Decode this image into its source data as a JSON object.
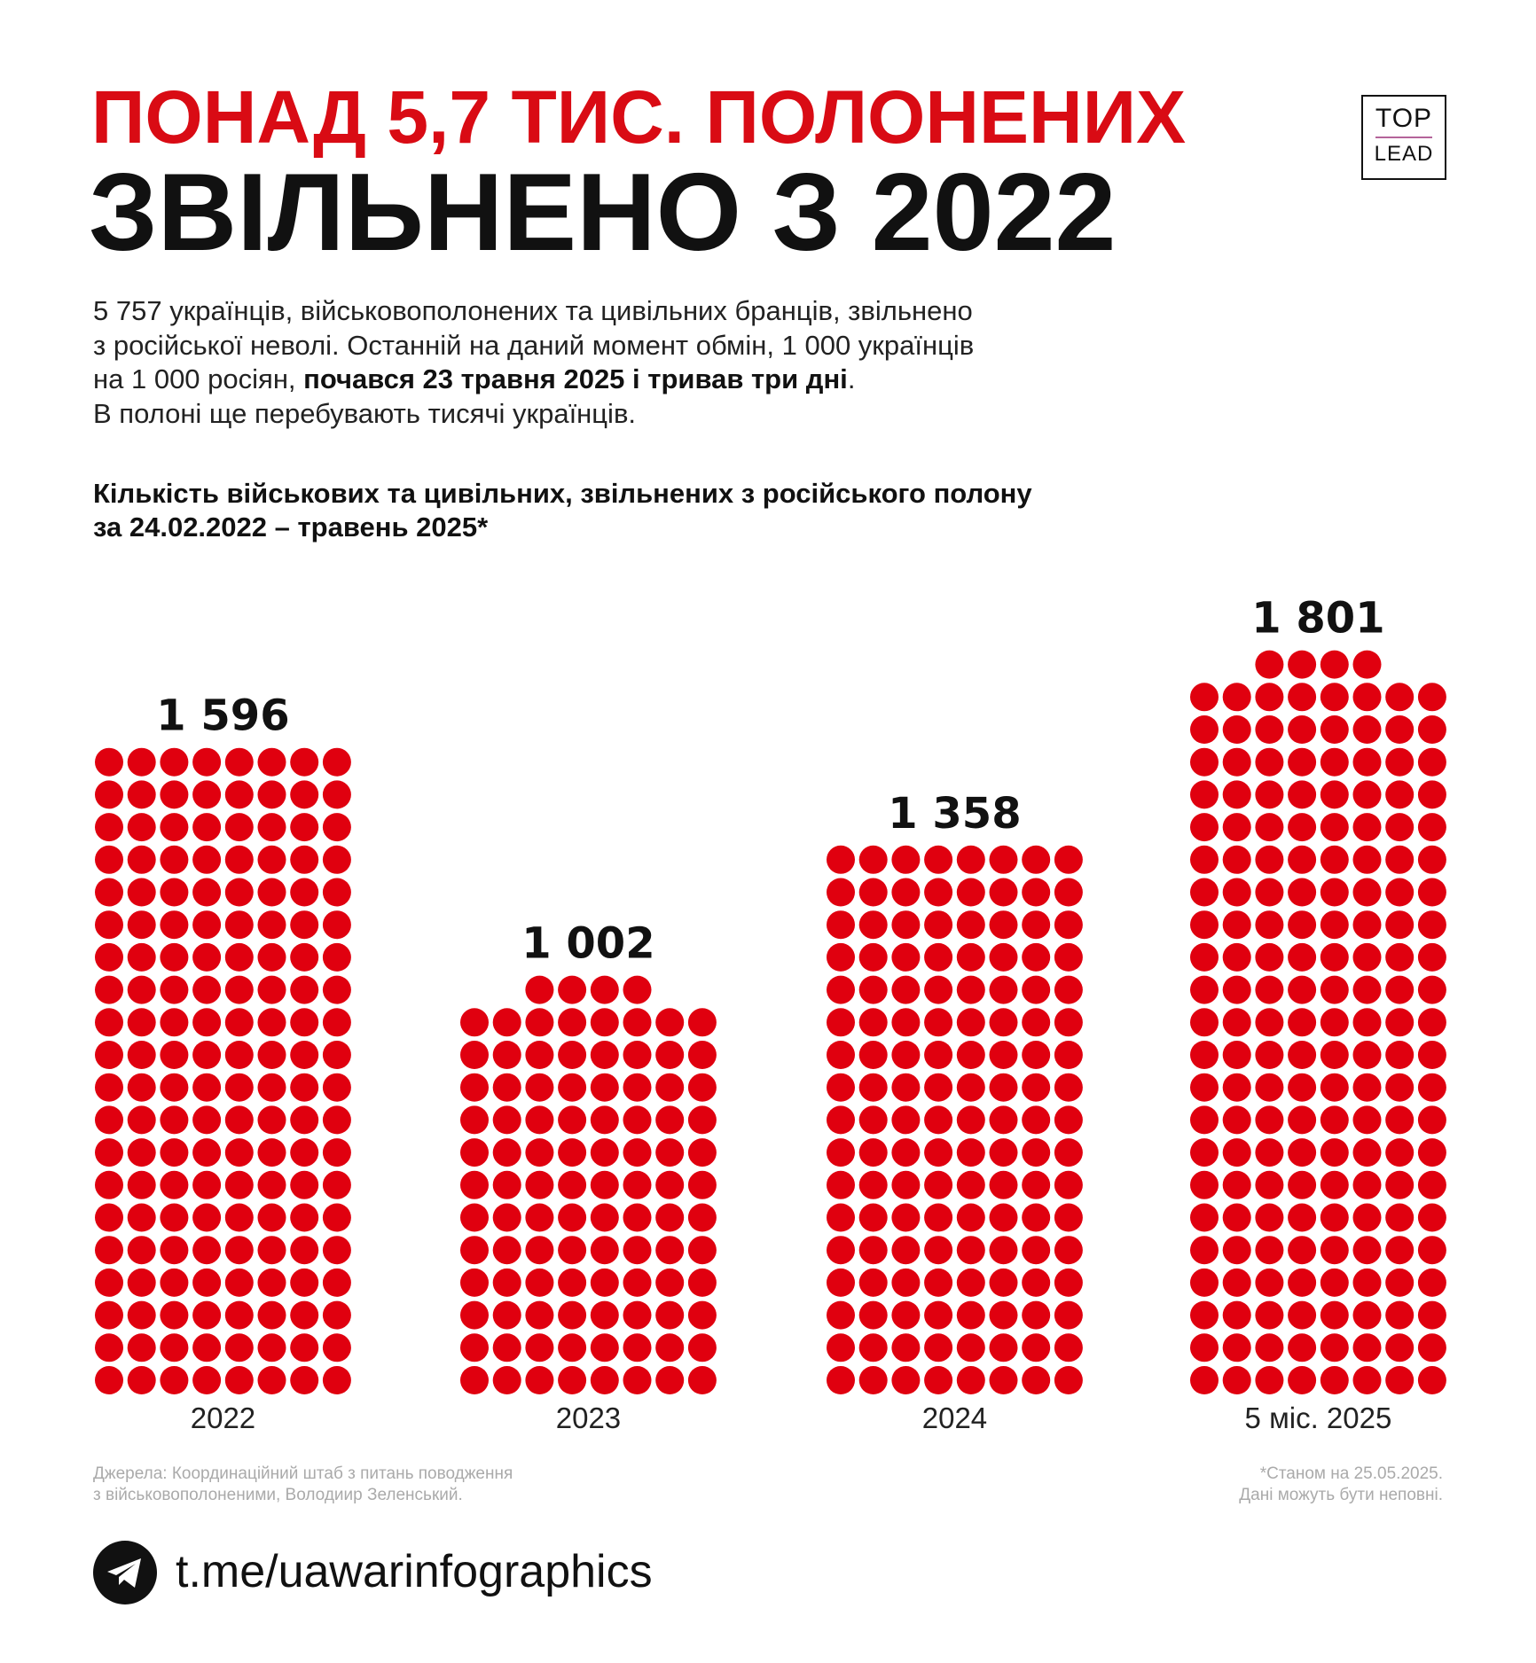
{
  "title": {
    "line1": "ПОНАД 5,7 ТИС. ПОЛОНЕНИХ",
    "line2": "ЗВІЛЬНЕНО З 2022"
  },
  "logo": {
    "top": "TOP",
    "bottom": "LEAD"
  },
  "intro": {
    "line1": "5 757 українців, військовополонених та цивільних бранців, звільнено",
    "line2": "з російської неволі. Останній на даний момент обмін, 1 000 українців",
    "line3_plain": "на 1 000 росіян, ",
    "line3_bold": "почався 23 травня 2025 і тривав три дні",
    "line3_end": ".",
    "line4": "В полоні ще перебувають тисячі українців."
  },
  "chart_data": {
    "type": "bar",
    "title": "Кількість військових та цивільних, звільнених з російського полону за 24.02.2022 – травень 2025*",
    "title_line1": "Кількість військових та цивільних, звільнених з російського полону",
    "title_line2": "за 24.02.2022 – травень 2025*",
    "style": "dot-matrix pictogram, 8 dots per row, 1 dot ≈ 10 people",
    "categories": [
      "2022",
      "2023",
      "2024",
      "5 міс. 2025"
    ],
    "values": [
      1596,
      1002,
      1358,
      1801
    ],
    "value_labels": [
      "1 596",
      "1 002",
      "1 358",
      "1 801"
    ],
    "grid": false,
    "colors": {
      "dot": "#e0000f"
    }
  },
  "footer": {
    "source_line1": "Джерела: Координаційний штаб з питань поводження",
    "source_line2": "з військовополоненими, Володиир Зеленський.",
    "note_line1": "*Станом на 25.05.2025.",
    "note_line2": "Дані можуть бути неповні.",
    "link": "t.me/uawarinfographics",
    "link_icon": "telegram-icon"
  }
}
